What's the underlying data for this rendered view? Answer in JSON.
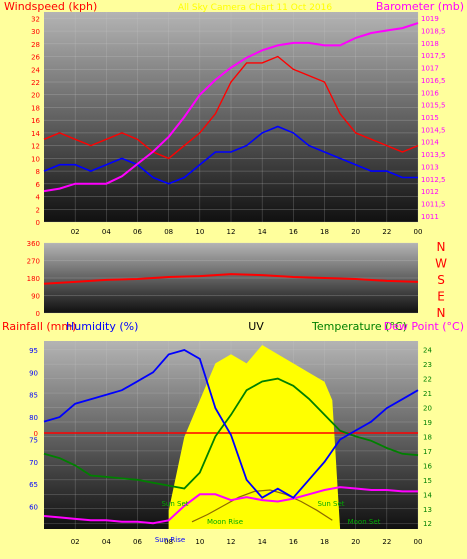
{
  "colors": {
    "background": "#ffff9c",
    "panel_top": "#b4b4b4",
    "panel_bottom": "#101010",
    "wind_speed": "#ff0000",
    "wind_average": "#0000ff",
    "barometer": "#ff00ff",
    "wind_direction": "#ff0000",
    "humidity": "#0000ff",
    "temperature": "#008000",
    "dew_point": "#ff00ff",
    "uv": "#ffff00",
    "rain": "#ff0000",
    "sun_moon_labels": "#00aa00",
    "moon_altitude": "#8c6a00"
  },
  "chart_data": [
    {
      "id": "wind",
      "type": "line",
      "title": "All Sky Camera Chart 11 Oct 2016",
      "left_label": "Windspeed (kph)",
      "right_label": "Barometer (mb)",
      "x_ticks": [
        "02",
        "04",
        "06",
        "08",
        "10",
        "12",
        "14",
        "16",
        "18",
        "20",
        "22",
        "00"
      ],
      "y_left_range": [
        0,
        33
      ],
      "y_left_ticks": [
        "0",
        "2",
        "4",
        "6",
        "8",
        "10",
        "12",
        "14",
        "16",
        "18",
        "20",
        "22",
        "24",
        "26",
        "28",
        "30",
        "32"
      ],
      "y_right_range": [
        1010.75,
        1019.25
      ],
      "y_right_ticks": [
        "1011",
        "1011,5",
        "1012",
        "1012,5",
        "1013",
        "1013,5",
        "1014",
        "1014,5",
        "1015",
        "1015,5",
        "1016",
        "1016,5",
        "1017",
        "1017,5",
        "1018",
        "1018,5",
        "1019"
      ],
      "series": [
        {
          "key": "gust",
          "x": [
            0,
            1,
            2,
            3,
            4,
            5,
            6,
            7,
            8,
            9,
            10,
            11,
            12,
            13,
            14,
            15,
            16,
            17,
            18,
            19,
            20,
            21,
            22,
            23,
            24
          ],
          "y": [
            13,
            14,
            13,
            12,
            13,
            14,
            13,
            11,
            10,
            12,
            14,
            17,
            22,
            25,
            25,
            26,
            24,
            23,
            22,
            17,
            14,
            13,
            12,
            11,
            12
          ]
        },
        {
          "key": "average",
          "x": [
            0,
            1,
            2,
            3,
            4,
            5,
            6,
            7,
            8,
            9,
            10,
            11,
            12,
            13,
            14,
            15,
            16,
            17,
            18,
            19,
            20,
            21,
            22,
            23,
            24
          ],
          "y": [
            8,
            9,
            9,
            8,
            9,
            10,
            9,
            7,
            6,
            7,
            9,
            11,
            11,
            12,
            14,
            15,
            14,
            12,
            11,
            10,
            9,
            8,
            8,
            7,
            7
          ]
        },
        {
          "key": "barometer",
          "x": [
            0,
            1,
            2,
            3,
            4,
            5,
            6,
            7,
            8,
            9,
            10,
            11,
            12,
            13,
            14,
            15,
            16,
            17,
            18,
            19,
            20,
            21,
            22,
            23,
            24
          ],
          "y": [
            1012,
            1012.1,
            1012.3,
            1012.3,
            1012.3,
            1012.6,
            1013.1,
            1013.6,
            1014.2,
            1015.0,
            1015.9,
            1016.5,
            1017.0,
            1017.4,
            1017.7,
            1017.9,
            1018.0,
            1018.0,
            1017.9,
            1017.9,
            1018.2,
            1018.4,
            1018.5,
            1018.6,
            1018.8
          ]
        }
      ]
    },
    {
      "id": "direction",
      "type": "line",
      "y_range": [
        0,
        360
      ],
      "y_ticks": [
        "0",
        "90",
        "180",
        "270",
        "360"
      ],
      "compass_labels": [
        "N",
        "W",
        "S",
        "E",
        "N"
      ],
      "series": [
        {
          "key": "direction",
          "x": [
            0,
            2,
            4,
            6,
            8,
            10,
            12,
            14,
            16,
            18,
            20,
            22,
            24
          ],
          "y": [
            150,
            160,
            170,
            175,
            185,
            190,
            200,
            195,
            185,
            180,
            175,
            165,
            160
          ]
        }
      ]
    },
    {
      "id": "temp_humidity",
      "type": "line",
      "top_labels": {
        "rainfall": "Rainfall (mm)",
        "humidity": "Humidity (%)",
        "uv": "UV",
        "temperature": "Temperature (°C)",
        "dew_point": "Dew Point (°C)"
      },
      "x_ticks": [
        "02",
        "04",
        "06",
        "08",
        "10",
        "12",
        "14",
        "16",
        "18",
        "20",
        "22",
        "00"
      ],
      "humidity_range": [
        55,
        97
      ],
      "humidity_ticks": [
        "60",
        "65",
        "70",
        "75",
        "80",
        "85",
        "90",
        "95"
      ],
      "temperature_range": [
        11.6,
        24.6
      ],
      "temperature_ticks": [
        "12",
        "13",
        "14",
        "15",
        "16",
        "17",
        "18",
        "19",
        "20",
        "21",
        "22",
        "23",
        "24"
      ],
      "rain_tick": "0",
      "series": [
        {
          "key": "humidity",
          "x": [
            0,
            1,
            2,
            3,
            4,
            5,
            6,
            7,
            8,
            9,
            10,
            11,
            12,
            13,
            14,
            15,
            16,
            17,
            18,
            19,
            20,
            21,
            22,
            23,
            24
          ],
          "y": [
            79,
            80,
            83,
            84,
            85,
            86,
            88,
            90,
            94,
            95,
            93,
            82,
            76,
            66,
            62,
            64,
            62,
            66,
            70,
            75,
            77,
            79,
            82,
            84,
            86
          ]
        },
        {
          "key": "temperature",
          "x": [
            0,
            1,
            2,
            3,
            4,
            5,
            6,
            7,
            8,
            9,
            10,
            11,
            12,
            13,
            14,
            15,
            16,
            17,
            18,
            19,
            20,
            21,
            22,
            23,
            24
          ],
          "y": [
            16.8,
            16.5,
            16.0,
            15.3,
            15.2,
            15.1,
            15.0,
            14.8,
            14.6,
            14.4,
            15.5,
            18.0,
            19.5,
            21.2,
            21.8,
            22.0,
            21.5,
            20.6,
            19.5,
            18.4,
            18.0,
            17.7,
            17.2,
            16.8,
            16.7
          ]
        },
        {
          "key": "dew_point",
          "x": [
            0,
            1,
            2,
            3,
            4,
            5,
            6,
            7,
            8,
            9,
            10,
            11,
            12,
            13,
            14,
            15,
            16,
            17,
            18,
            19,
            20,
            21,
            22,
            23,
            24
          ],
          "y": [
            12.5,
            12.4,
            12.3,
            12.2,
            12.2,
            12.1,
            12.1,
            12.0,
            12.2,
            13.2,
            14.0,
            14.0,
            13.6,
            13.8,
            13.6,
            13.5,
            13.7,
            14.0,
            14.3,
            14.5,
            14.4,
            14.3,
            14.3,
            14.2,
            14.2
          ]
        },
        {
          "key": "moon_altitude",
          "x": [
            9.5,
            10.5,
            11.5,
            12.5,
            13.5,
            14.5,
            15.5,
            16.5,
            17.5,
            18.5
          ],
          "y": [
            12.1,
            12.6,
            13.2,
            13.8,
            14.2,
            14.3,
            14.0,
            13.5,
            12.9,
            12.2
          ]
        },
        {
          "key": "uv",
          "x": [
            8.0,
            9.0,
            10.0,
            11.0,
            12.0,
            13.0,
            14.0,
            15.0,
            16.0,
            17.0,
            18.0,
            18.5,
            19.0
          ],
          "y": [
            0.1,
            0.5,
            0.7,
            0.9,
            0.95,
            0.9,
            1.0,
            0.95,
            0.9,
            0.85,
            0.8,
            0.7,
            0.0
          ]
        }
      ],
      "annotations": [
        "Sun Set",
        "Sun Set",
        "Moon Rise",
        "Moon Set",
        "Sun Rise"
      ]
    }
  ]
}
